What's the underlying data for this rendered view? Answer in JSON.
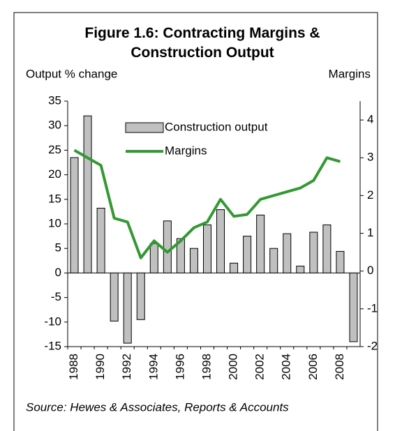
{
  "chart_data": {
    "type": "bar_line",
    "title": "Figure 1.6: Contracting Margins & Construction Output",
    "y_axis_label": "Output % change",
    "y2_axis_label": "Margins",
    "source": "Source: Hewes & Associates, Reports & Accounts",
    "categories": [
      "1988",
      null,
      "1990",
      null,
      "1992",
      null,
      "1994",
      null,
      "1996",
      null,
      "1998",
      null,
      "2000",
      null,
      "2002",
      null,
      "2004",
      null,
      "2006",
      null,
      "2008",
      null
    ],
    "series": [
      {
        "name": "Construction output",
        "type": "bar",
        "color": "#c0c0c0",
        "values": [
          23.5,
          32,
          13.2,
          -9.8,
          -14.3,
          -9.5,
          6,
          10.6,
          7,
          5,
          9.8,
          12.9,
          2,
          7.5,
          11.8,
          5,
          8,
          1.4,
          8.3,
          9.8,
          4.4,
          -14
        ]
      },
      {
        "name": "Margins",
        "type": "line",
        "axis": "y2",
        "color": "#339933",
        "values": [
          3.2,
          3.0,
          2.8,
          1.4,
          1.3,
          0.35,
          0.8,
          0.5,
          0.8,
          1.15,
          1.3,
          1.9,
          1.45,
          1.5,
          1.9,
          2.0,
          2.1,
          2.2,
          2.4,
          3.0,
          2.9,
          null
        ]
      }
    ],
    "ylim": [
      -15,
      35
    ],
    "yticks": [
      -15,
      -10,
      -5,
      0,
      5,
      10,
      15,
      20,
      25,
      30,
      35
    ],
    "y2lim": [
      -2,
      4.5
    ],
    "y2ticks": [
      -2,
      -1,
      0,
      1,
      2,
      3,
      4
    ],
    "legend": "upper center",
    "grid": false
  }
}
